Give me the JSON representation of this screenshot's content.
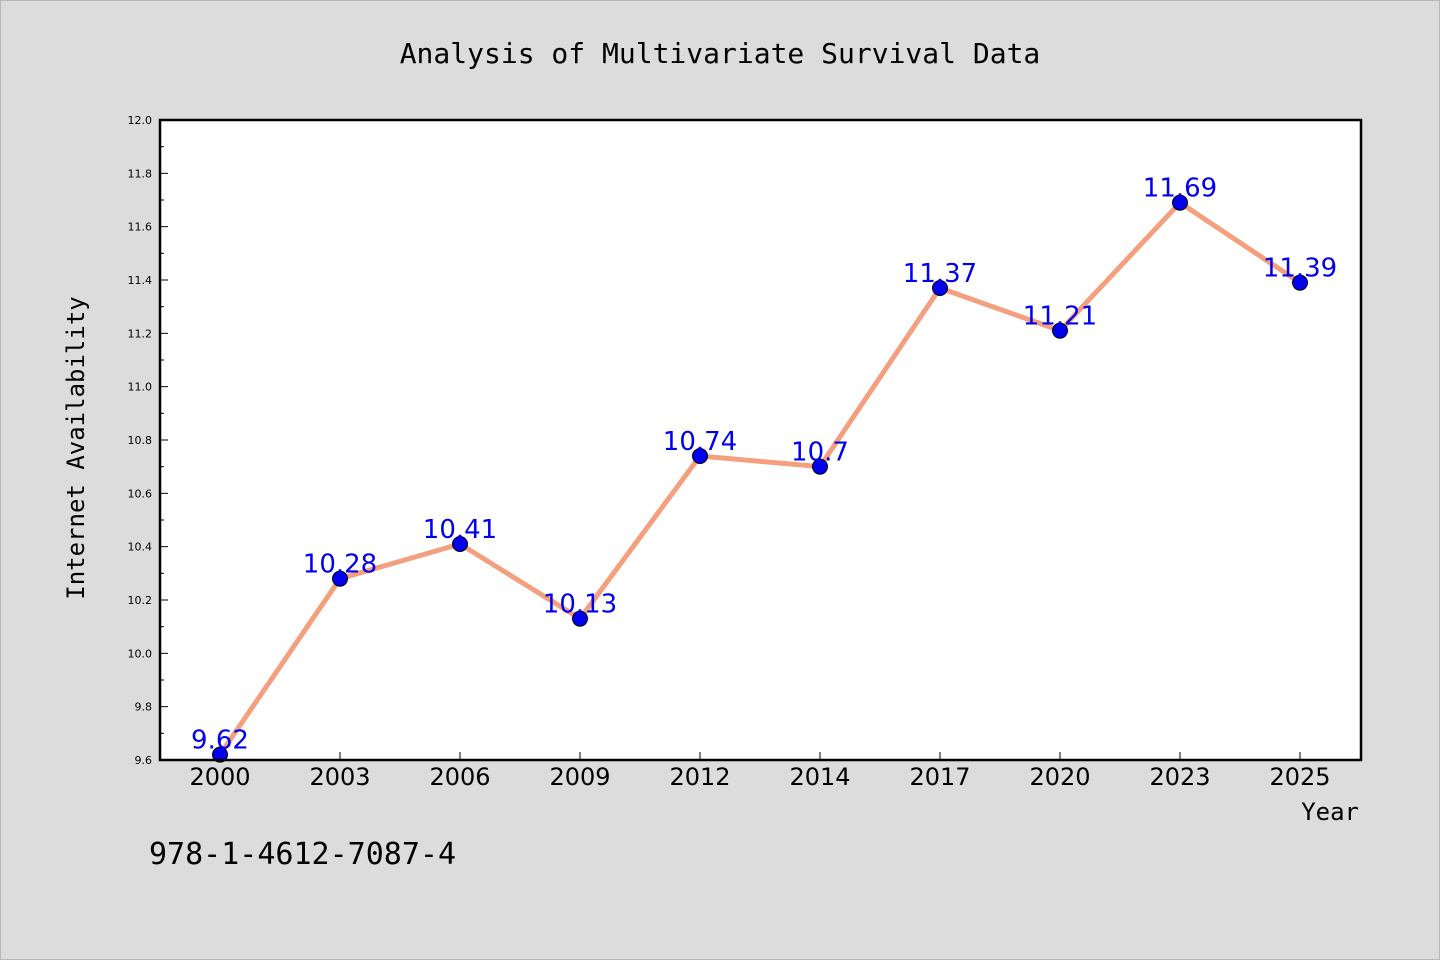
{
  "chart_data": {
    "type": "line",
    "title": "Analysis of Multivariate Survival Data",
    "xlabel": "Year",
    "ylabel": "Internet Availability",
    "categories": [
      "2000",
      "2003",
      "2006",
      "2009",
      "2012",
      "2014",
      "2017",
      "2020",
      "2023",
      "2025"
    ],
    "series": [
      {
        "values": [
          9.62,
          10.28,
          10.41,
          10.13,
          10.74,
          10.7,
          11.37,
          11.21,
          11.69,
          11.39
        ],
        "labels": [
          "9.62",
          "10.28",
          "10.41",
          "10.13",
          "10.74",
          "10.7",
          "11.37",
          "11.21",
          "11.69",
          "11.39"
        ],
        "line_color": "#f4a07f",
        "marker_color": "#0000ee"
      }
    ],
    "ylim": [
      9.6,
      12.0
    ],
    "yticks": [
      "9.6",
      "9.8",
      "10.0",
      "10.2",
      "10.4",
      "10.6",
      "10.8",
      "11.0",
      "11.2",
      "11.4",
      "11.6",
      "11.8",
      "12.0"
    ],
    "grid": false
  },
  "footer": {
    "isbn": "978-1-4612-7087-4"
  }
}
